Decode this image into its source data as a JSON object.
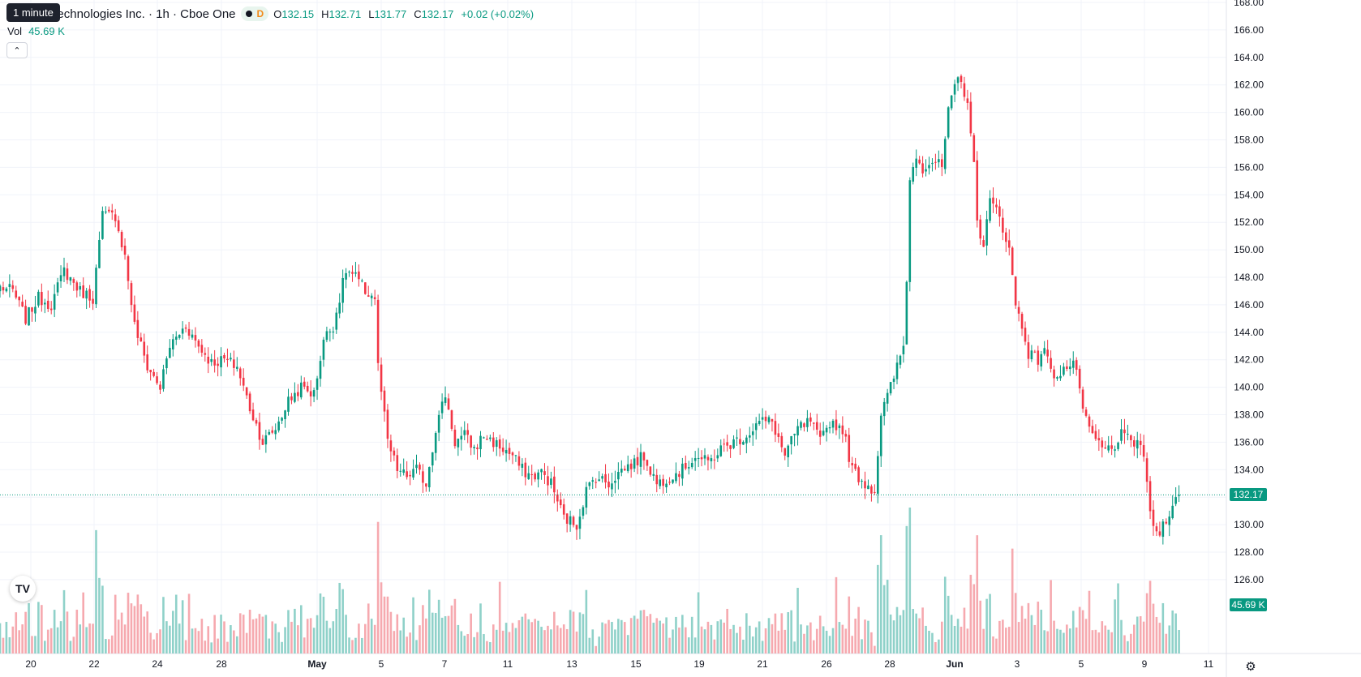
{
  "header": {
    "title": "r Technologies Inc. · 1h · Cboe One",
    "d_badge": "D",
    "ohlc": [
      {
        "k": "O",
        "v": "132.15"
      },
      {
        "k": "H",
        "v": "132.71"
      },
      {
        "k": "L",
        "v": "131.77"
      },
      {
        "k": "C",
        "v": "132.17"
      }
    ],
    "change": "+0.02 (+0.02%)",
    "tooltip": "1 minute"
  },
  "volume": {
    "label": "Vol",
    "value": "45.69 K"
  },
  "colors": {
    "up": "#089981",
    "down": "#f23645",
    "up_vol": "#8fd1c9",
    "down_vol": "#f6a9af",
    "grid": "#f0f3fa"
  },
  "price_axis": [
    "168.00",
    "166.00",
    "164.00",
    "162.00",
    "160.00",
    "158.00",
    "156.00",
    "154.00",
    "152.00",
    "150.00",
    "148.00",
    "146.00",
    "144.00",
    "142.00",
    "140.00",
    "138.00",
    "136.00",
    "134.00",
    "132.00",
    "130.00",
    "128.00",
    "126.00"
  ],
  "last_price_tag": "132.17",
  "volume_tag": "45.69 K",
  "time_axis": [
    "20",
    "22",
    "24",
    "28",
    "May",
    "5",
    "7",
    "11",
    "13",
    "15",
    "19",
    "21",
    "26",
    "28",
    "Jun",
    "3",
    "5",
    "9",
    "11"
  ],
  "chart_data": {
    "type": "candlestick",
    "interval": "1h",
    "ylim": [
      125,
      168
    ],
    "last_close": 132.17,
    "anchors": [
      {
        "i": 0,
        "v": 147.3
      },
      {
        "i": 4,
        "v": 147.0
      },
      {
        "i": 8,
        "v": 145.0
      },
      {
        "i": 12,
        "v": 146.5
      },
      {
        "i": 16,
        "v": 146.0
      },
      {
        "i": 20,
        "v": 148.5
      },
      {
        "i": 25,
        "v": 147.0
      },
      {
        "i": 29,
        "v": 146.5
      },
      {
        "i": 32,
        "v": 152.5
      },
      {
        "i": 36,
        "v": 152.5
      },
      {
        "i": 39,
        "v": 149.5
      },
      {
        "i": 42,
        "v": 144.5
      },
      {
        "i": 46,
        "v": 141.5
      },
      {
        "i": 50,
        "v": 140.0
      },
      {
        "i": 53,
        "v": 143.0
      },
      {
        "i": 58,
        "v": 144.5
      },
      {
        "i": 62,
        "v": 143.0
      },
      {
        "i": 66,
        "v": 141.8
      },
      {
        "i": 70,
        "v": 142.0
      },
      {
        "i": 74,
        "v": 141.5
      },
      {
        "i": 78,
        "v": 138.5
      },
      {
        "i": 82,
        "v": 136.0
      },
      {
        "i": 86,
        "v": 137.0
      },
      {
        "i": 90,
        "v": 139.0
      },
      {
        "i": 94,
        "v": 140.0
      },
      {
        "i": 98,
        "v": 139.5
      },
      {
        "i": 101,
        "v": 143.5
      },
      {
        "i": 104,
        "v": 144.5
      },
      {
        "i": 108,
        "v": 148.5
      },
      {
        "i": 111,
        "v": 148.0
      },
      {
        "i": 114,
        "v": 147.0
      },
      {
        "i": 117,
        "v": 146.5
      },
      {
        "i": 118,
        "v": 141.5
      },
      {
        "i": 121,
        "v": 136.0
      },
      {
        "i": 124,
        "v": 134.0
      },
      {
        "i": 127,
        "v": 133.5
      },
      {
        "i": 130,
        "v": 134.0
      },
      {
        "i": 133,
        "v": 133.0
      },
      {
        "i": 136,
        "v": 137.0
      },
      {
        "i": 139,
        "v": 139.5
      },
      {
        "i": 142,
        "v": 136.0
      },
      {
        "i": 145,
        "v": 136.5
      },
      {
        "i": 148,
        "v": 135.5
      },
      {
        "i": 151,
        "v": 136.5
      },
      {
        "i": 154,
        "v": 136.0
      },
      {
        "i": 157,
        "v": 135.5
      },
      {
        "i": 160,
        "v": 135.0
      },
      {
        "i": 163,
        "v": 134.0
      },
      {
        "i": 166,
        "v": 133.5
      },
      {
        "i": 169,
        "v": 133.8
      },
      {
        "i": 172,
        "v": 133.0
      },
      {
        "i": 176,
        "v": 130.5
      },
      {
        "i": 180,
        "v": 130.0
      },
      {
        "i": 183,
        "v": 132.5
      },
      {
        "i": 186,
        "v": 133.5
      },
      {
        "i": 190,
        "v": 133.0
      },
      {
        "i": 194,
        "v": 134.0
      },
      {
        "i": 198,
        "v": 134.5
      },
      {
        "i": 201,
        "v": 135.0
      },
      {
        "i": 205,
        "v": 133.0
      },
      {
        "i": 209,
        "v": 133.5
      },
      {
        "i": 213,
        "v": 134.0
      },
      {
        "i": 217,
        "v": 135.0
      },
      {
        "i": 221,
        "v": 134.5
      },
      {
        "i": 225,
        "v": 135.5
      },
      {
        "i": 229,
        "v": 136.0
      },
      {
        "i": 233,
        "v": 136.5
      },
      {
        "i": 237,
        "v": 137.5
      },
      {
        "i": 241,
        "v": 137.5
      },
      {
        "i": 245,
        "v": 135.0
      },
      {
        "i": 249,
        "v": 137.0
      },
      {
        "i": 253,
        "v": 137.5
      },
      {
        "i": 256,
        "v": 136.0
      },
      {
        "i": 259,
        "v": 137.5
      },
      {
        "i": 263,
        "v": 137.0
      },
      {
        "i": 266,
        "v": 134.0
      },
      {
        "i": 270,
        "v": 133.0
      },
      {
        "i": 273,
        "v": 132.5
      },
      {
        "i": 275,
        "v": 138.0
      },
      {
        "i": 278,
        "v": 140.0
      },
      {
        "i": 282,
        "v": 143.0
      },
      {
        "i": 283,
        "v": 148.0
      },
      {
        "i": 284,
        "v": 155.0
      },
      {
        "i": 286,
        "v": 157.0
      },
      {
        "i": 288,
        "v": 156.0
      },
      {
        "i": 291,
        "v": 156.5
      },
      {
        "i": 294,
        "v": 156.0
      },
      {
        "i": 296,
        "v": 160.0
      },
      {
        "i": 299,
        "v": 162.5
      },
      {
        "i": 302,
        "v": 161.0
      },
      {
        "i": 304,
        "v": 156.0
      },
      {
        "i": 305,
        "v": 152.0
      },
      {
        "i": 307,
        "v": 150.5
      },
      {
        "i": 309,
        "v": 153.5
      },
      {
        "i": 312,
        "v": 152.5
      },
      {
        "i": 315,
        "v": 150.0
      },
      {
        "i": 317,
        "v": 146.0
      },
      {
        "i": 319,
        "v": 144.5
      },
      {
        "i": 321,
        "v": 142.5
      },
      {
        "i": 324,
        "v": 142.0
      },
      {
        "i": 326,
        "v": 143.0
      },
      {
        "i": 328,
        "v": 141.0
      },
      {
        "i": 330,
        "v": 141.0
      },
      {
        "i": 333,
        "v": 141.5
      },
      {
        "i": 336,
        "v": 141.5
      },
      {
        "i": 338,
        "v": 138.0
      },
      {
        "i": 341,
        "v": 136.5
      },
      {
        "i": 344,
        "v": 135.5
      },
      {
        "i": 347,
        "v": 135.5
      },
      {
        "i": 350,
        "v": 136.5
      },
      {
        "i": 353,
        "v": 136.0
      },
      {
        "i": 356,
        "v": 136.0
      },
      {
        "i": 358,
        "v": 133.0
      },
      {
        "i": 360,
        "v": 129.5
      },
      {
        "i": 362,
        "v": 129.5
      },
      {
        "i": 364,
        "v": 130.5
      },
      {
        "i": 366,
        "v": 131.5
      },
      {
        "i": 368,
        "v": 132.17
      }
    ]
  }
}
